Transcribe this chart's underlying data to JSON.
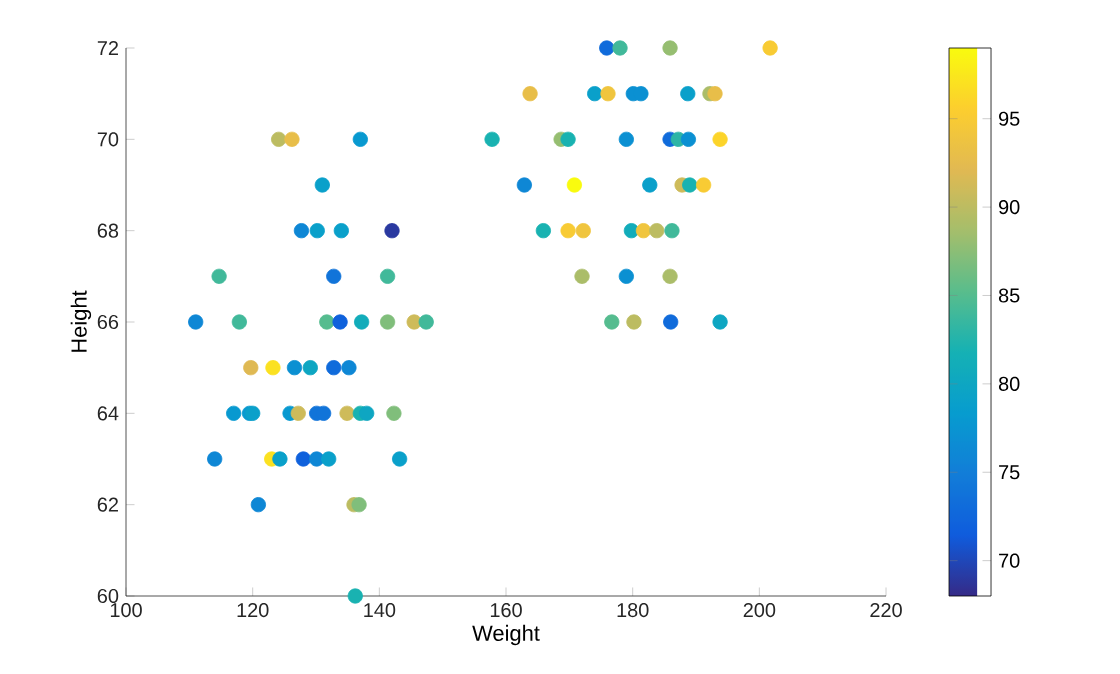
{
  "chart_data": {
    "type": "scatter",
    "xlabel": "Weight",
    "ylabel": "Height",
    "marker": "circle",
    "grid": false,
    "xlim": [
      100,
      220
    ],
    "xticks": [
      100,
      120,
      140,
      160,
      180,
      200,
      220
    ],
    "ylim": [
      60,
      72
    ],
    "yticks": [
      60,
      62,
      64,
      66,
      68,
      70,
      72
    ],
    "clim": [
      68,
      99
    ],
    "cticks": [
      70,
      75,
      80,
      85,
      90,
      95
    ],
    "x": [
      124.1,
      126.2,
      137.0,
      131.0,
      127.7,
      130.2,
      134,
      142,
      114.7,
      132.8,
      141.3,
      111,
      117.9,
      131.7,
      133.8,
      137.2,
      141.3,
      145.5,
      147.4,
      119.7,
      123.2,
      126.6,
      129.1,
      132.8,
      135.2,
      117,
      119.5,
      120,
      125.9,
      127.2,
      130.1,
      131.2,
      134.9,
      137,
      138,
      142.3,
      114,
      123,
      124.3,
      128,
      130.1,
      132,
      143.2,
      120.9,
      136,
      136.8,
      136.2,
      175.9,
      178,
      185.9,
      201.7,
      163.8,
      174,
      176.1,
      180.1,
      181.3,
      188.7,
      192.2,
      193,
      157.8,
      168.7,
      169.8,
      179,
      185.9,
      187.2,
      188.8,
      193.8,
      162.9,
      170.8,
      182.7,
      187.8,
      189,
      191.2,
      165.9,
      169.8,
      172.2,
      179.8,
      181.7,
      183.8,
      186.2,
      172,
      179,
      185.9,
      176.7,
      180.2,
      186,
      193.8
    ],
    "values": [
      70,
      70,
      70,
      69,
      68,
      68,
      68,
      68,
      67,
      67,
      67,
      66,
      66,
      66,
      66,
      66,
      66,
      66,
      66,
      65,
      65,
      65,
      65,
      65,
      65,
      64,
      64,
      64,
      64,
      64,
      64,
      64,
      64,
      64,
      64,
      64,
      63,
      63,
      63,
      63,
      63,
      63,
      63,
      62,
      62,
      62,
      60,
      72,
      72,
      72,
      72,
      71,
      71,
      71,
      71,
      71,
      71,
      71,
      71,
      70,
      70,
      70,
      70,
      70,
      70,
      70,
      70,
      69,
      69,
      69,
      69,
      69,
      69,
      68,
      68,
      68,
      68,
      68,
      68,
      68,
      67,
      67,
      67,
      66,
      66,
      66,
      66
    ],
    "cvalues": [
      90,
      93,
      78,
      79,
      76,
      79,
      79,
      69,
      84,
      74,
      84,
      76,
      84,
      85,
      72,
      81,
      87,
      91,
      84,
      92,
      97,
      77,
      80,
      73,
      76,
      78,
      78,
      79,
      78,
      91,
      74,
      74,
      91,
      82,
      80,
      87,
      76,
      97,
      79,
      72,
      76,
      79,
      79,
      76,
      90,
      87,
      82,
      73,
      84,
      88,
      95,
      93,
      79,
      94,
      77,
      77,
      79,
      89,
      93,
      82,
      88,
      82,
      77,
      73,
      83,
      77,
      96,
      76,
      99,
      79,
      91,
      82,
      95,
      82,
      95,
      94,
      81,
      94,
      90,
      84,
      89,
      77,
      89,
      85,
      90,
      73,
      80
    ]
  }
}
